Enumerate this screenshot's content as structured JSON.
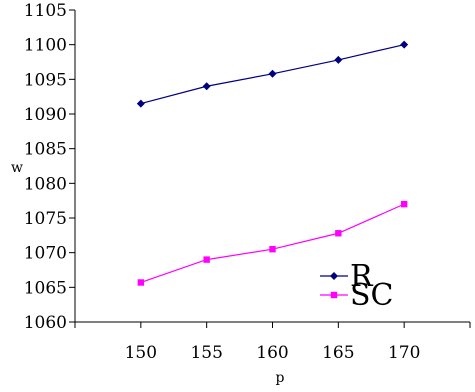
{
  "chart_data": {
    "type": "line",
    "xlabel": "p",
    "ylabel": "w",
    "x": [
      150,
      155,
      160,
      165,
      170
    ],
    "xlim": [
      145,
      175
    ],
    "xticks": [
      150,
      155,
      160,
      165,
      170
    ],
    "ylim": [
      1060,
      1105
    ],
    "yticks": [
      1060,
      1065,
      1070,
      1075,
      1080,
      1085,
      1090,
      1095,
      1100,
      1105
    ],
    "grid": false,
    "legend_position": "bottom-right",
    "series": [
      {
        "name": "R",
        "color": "#000080",
        "marker": "diamond",
        "values": [
          1091.5,
          1094,
          1095.8,
          1097.8,
          1100
        ]
      },
      {
        "name": "SC",
        "color": "#ff00ff",
        "marker": "square",
        "values": [
          1065.7,
          1069,
          1070.5,
          1072.8,
          1077
        ]
      }
    ]
  }
}
